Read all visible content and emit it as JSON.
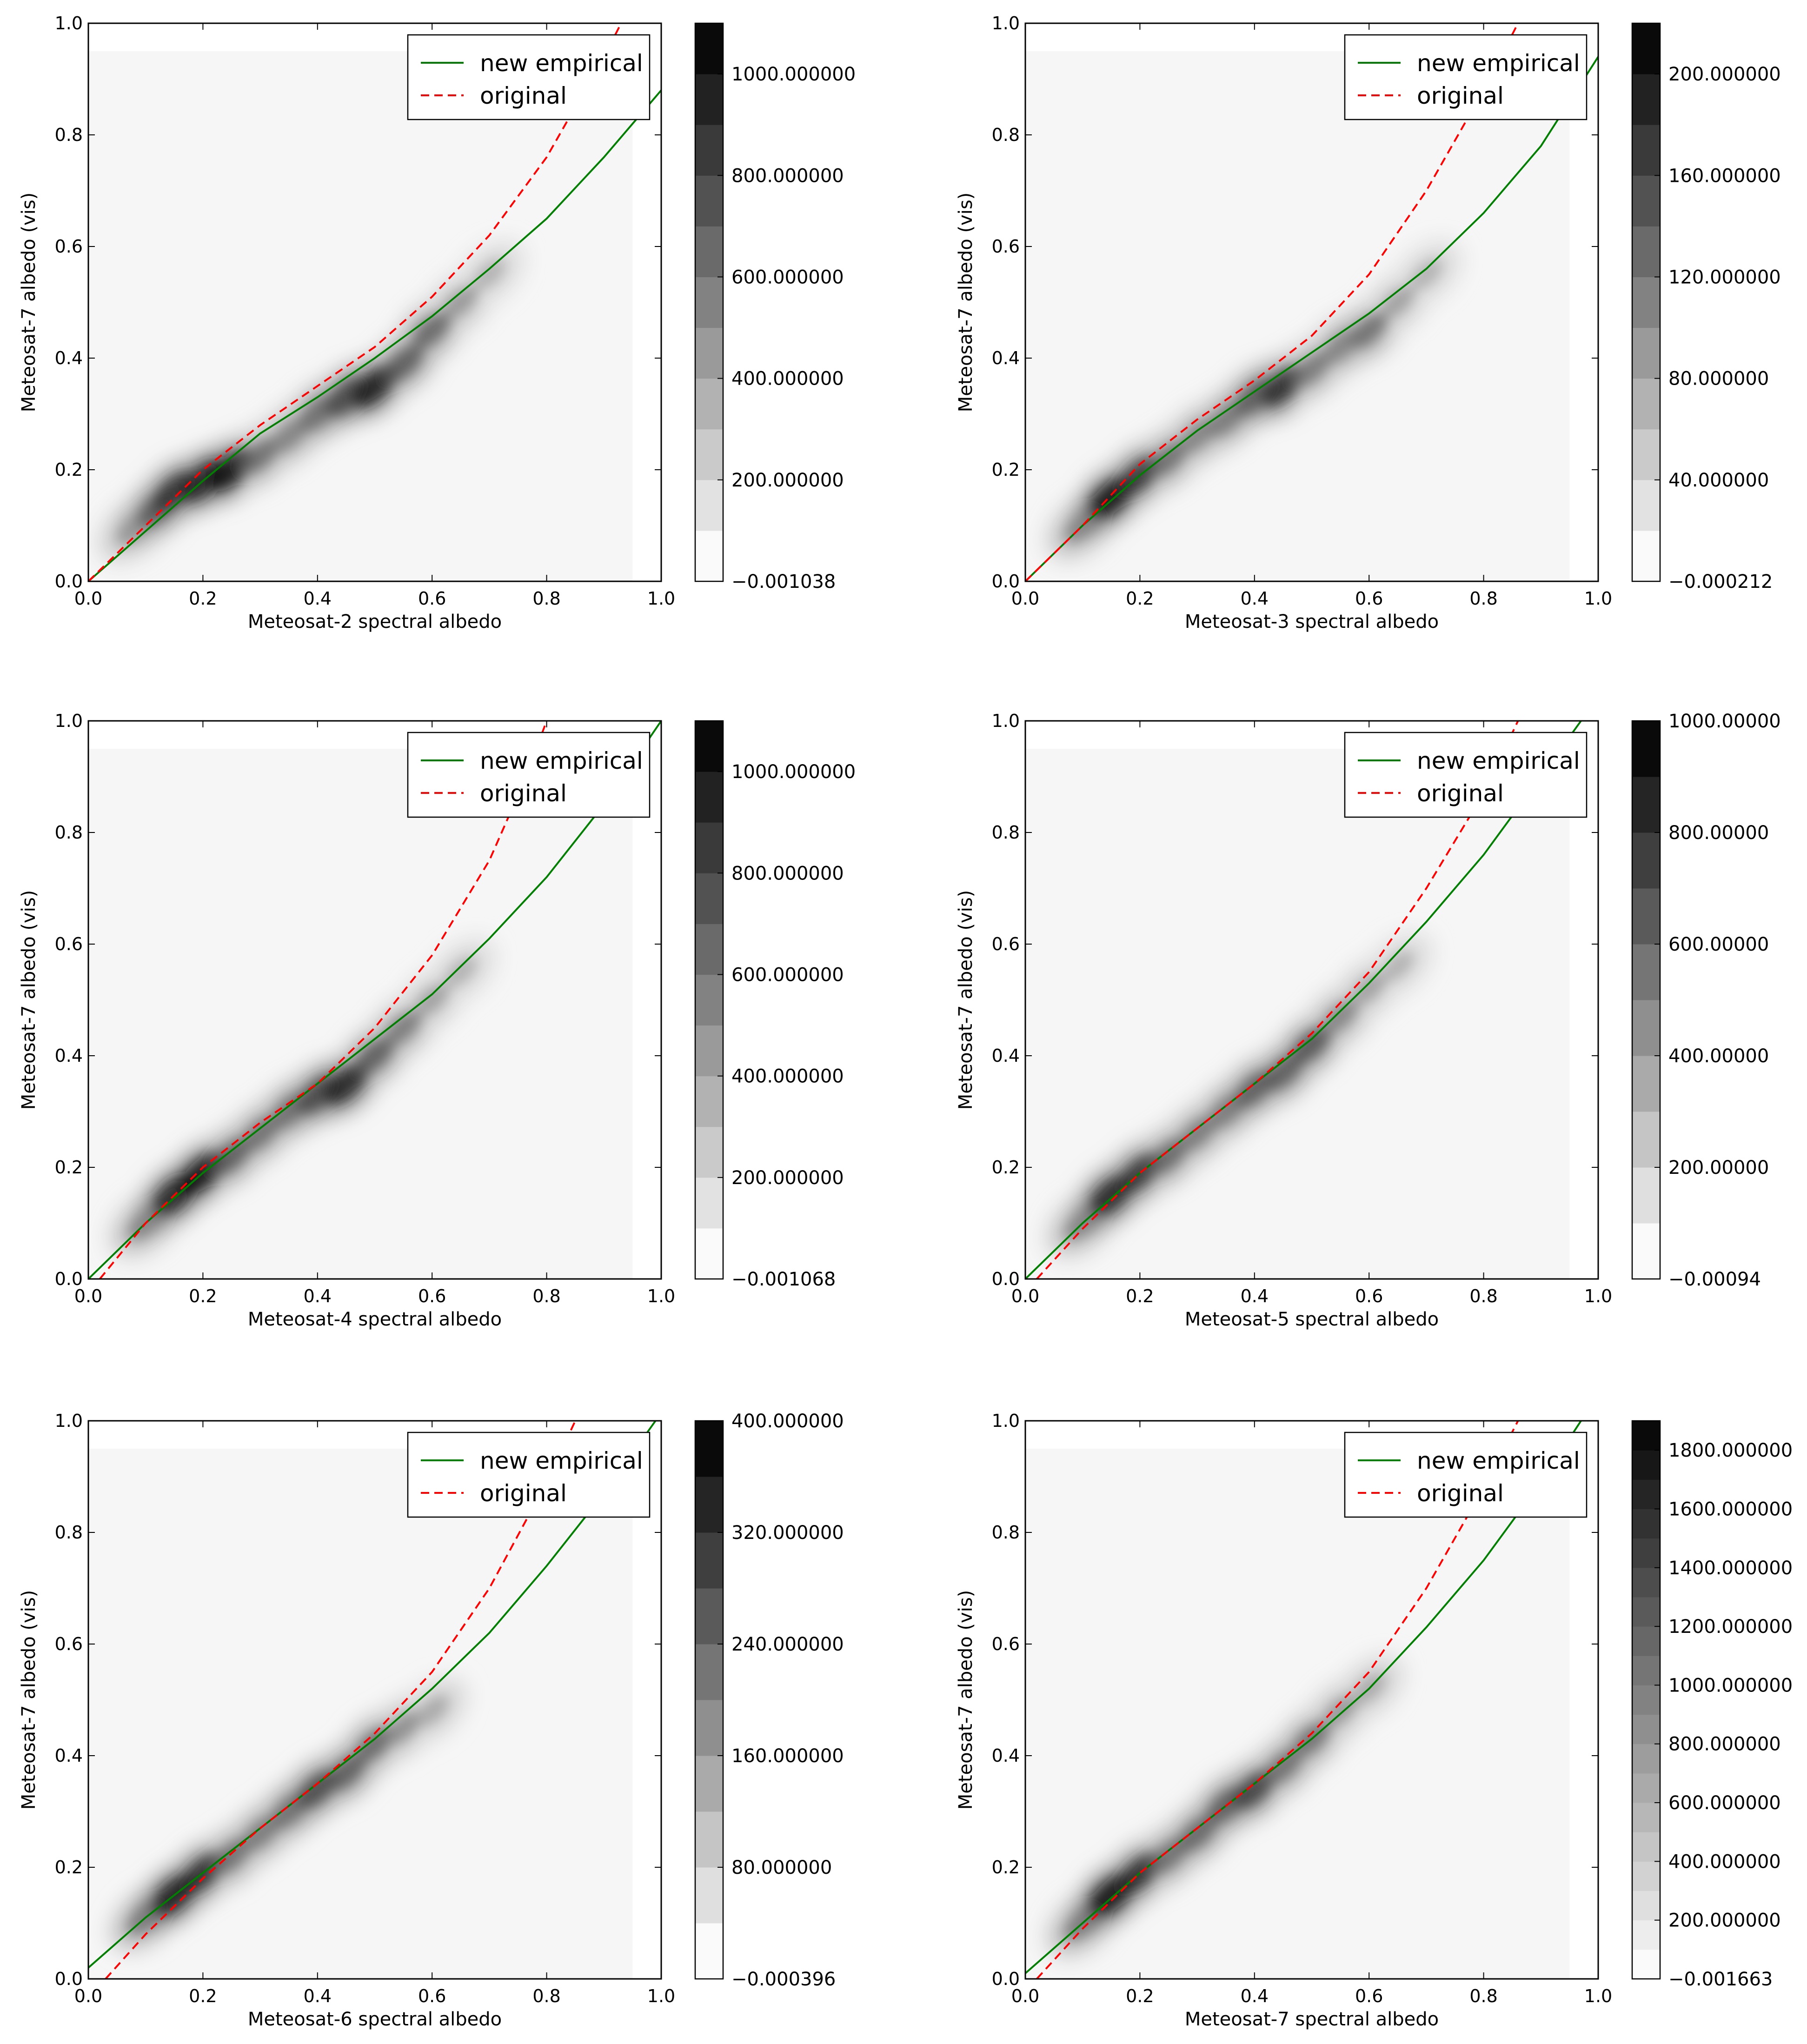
{
  "legend": {
    "new_label": "new empirical",
    "orig_label": "original"
  },
  "colors": {
    "new": "#007f00",
    "original": "#ff0000",
    "frame": "#000000"
  },
  "chart_data": [
    {
      "type": "contour",
      "xlabel": "Meteosat-2 spectral albedo",
      "ylabel": "Meteosat-7 albedo (vis)",
      "xlim": [
        0,
        1
      ],
      "ylim": [
        0,
        1
      ],
      "x_ticks": [
        "0.0",
        "0.2",
        "0.4",
        "0.6",
        "0.8",
        "1.0"
      ],
      "y_ticks": [
        "0.0",
        "0.2",
        "0.4",
        "0.6",
        "0.8",
        "1.0"
      ],
      "legend_position": "top-right",
      "colorbar": {
        "labels": [
          "−0.001038",
          "200.000000",
          "400.000000",
          "600.000000",
          "800.000000",
          "1000.000000"
        ],
        "vmin": 0,
        "vmax": 1100,
        "label_start": 0,
        "label_step": 200
      },
      "series": [
        {
          "name": "new empirical",
          "style": "solid",
          "x": [
            0,
            0.1,
            0.2,
            0.3,
            0.4,
            0.5,
            0.6,
            0.7,
            0.8,
            0.9,
            1.0
          ],
          "y": [
            0,
            0.09,
            0.18,
            0.265,
            0.33,
            0.4,
            0.475,
            0.56,
            0.65,
            0.76,
            0.88
          ]
        },
        {
          "name": "original",
          "style": "dashed",
          "x": [
            0,
            0.1,
            0.2,
            0.3,
            0.4,
            0.5,
            0.6,
            0.7,
            0.8,
            0.9,
            0.93
          ],
          "y": [
            0,
            0.1,
            0.2,
            0.28,
            0.35,
            0.42,
            0.51,
            0.62,
            0.76,
            0.94,
            1.0
          ]
        }
      ],
      "density": {
        "xy": [
          [
            0.08,
            0.095
          ],
          [
            0.12,
            0.13
          ],
          [
            0.15,
            0.16
          ],
          [
            0.2,
            0.18
          ],
          [
            0.25,
            0.2
          ],
          [
            0.3,
            0.225
          ],
          [
            0.35,
            0.26
          ],
          [
            0.4,
            0.3
          ],
          [
            0.45,
            0.33
          ],
          [
            0.5,
            0.35
          ],
          [
            0.55,
            0.39
          ],
          [
            0.6,
            0.45
          ],
          [
            0.65,
            0.5
          ],
          [
            0.7,
            0.55
          ]
        ],
        "w": [
          0.3,
          0.6,
          0.8,
          0.9,
          1.0,
          0.5,
          0.4,
          0.5,
          0.7,
          0.95,
          0.6,
          0.55,
          0.3,
          0.15
        ]
      }
    },
    {
      "type": "contour",
      "xlabel": "Meteosat-3 spectral albedo",
      "ylabel": "Meteosat-7 albedo (vis)",
      "xlim": [
        0,
        1
      ],
      "ylim": [
        0,
        1
      ],
      "x_ticks": [
        "0.0",
        "0.2",
        "0.4",
        "0.6",
        "0.8",
        "1.0"
      ],
      "y_ticks": [
        "0.0",
        "0.2",
        "0.4",
        "0.6",
        "0.8",
        "1.0"
      ],
      "legend_position": "top-right",
      "colorbar": {
        "labels": [
          "−0.000212",
          "40.000000",
          "80.000000",
          "120.000000",
          "160.000000",
          "200.000000"
        ],
        "vmin": 0,
        "vmax": 220,
        "label_start": 0,
        "label_step": 40
      },
      "series": [
        {
          "name": "new empirical",
          "style": "solid",
          "x": [
            0,
            0.1,
            0.2,
            0.3,
            0.4,
            0.5,
            0.6,
            0.7,
            0.8,
            0.9,
            1.0
          ],
          "y": [
            0,
            0.1,
            0.19,
            0.27,
            0.34,
            0.41,
            0.48,
            0.56,
            0.66,
            0.78,
            0.94
          ]
        },
        {
          "name": "original",
          "style": "dashed",
          "x": [
            0,
            0.1,
            0.2,
            0.3,
            0.4,
            0.5,
            0.6,
            0.7,
            0.8,
            0.86
          ],
          "y": [
            0,
            0.1,
            0.21,
            0.29,
            0.36,
            0.44,
            0.55,
            0.7,
            0.88,
            1.0
          ]
        }
      ],
      "density": {
        "xy": [
          [
            0.1,
            0.1
          ],
          [
            0.15,
            0.15
          ],
          [
            0.2,
            0.19
          ],
          [
            0.25,
            0.22
          ],
          [
            0.3,
            0.26
          ],
          [
            0.35,
            0.29
          ],
          [
            0.4,
            0.33
          ],
          [
            0.45,
            0.35
          ],
          [
            0.5,
            0.38
          ],
          [
            0.55,
            0.42
          ],
          [
            0.6,
            0.45
          ],
          [
            0.65,
            0.5
          ],
          [
            0.7,
            0.55
          ]
        ],
        "w": [
          0.4,
          1.0,
          0.8,
          0.5,
          0.4,
          0.45,
          0.6,
          0.85,
          0.45,
          0.4,
          0.5,
          0.25,
          0.15
        ]
      }
    },
    {
      "type": "contour",
      "xlabel": "Meteosat-4 spectral albedo",
      "ylabel": "Meteosat-7 albedo (vis)",
      "xlim": [
        0,
        1
      ],
      "ylim": [
        0,
        1
      ],
      "x_ticks": [
        "0.0",
        "0.2",
        "0.4",
        "0.6",
        "0.8",
        "1.0"
      ],
      "y_ticks": [
        "0.0",
        "0.2",
        "0.4",
        "0.6",
        "0.8",
        "1.0"
      ],
      "legend_position": "top-right",
      "colorbar": {
        "labels": [
          "−0.001068",
          "200.000000",
          "400.000000",
          "600.000000",
          "800.000000",
          "1000.000000"
        ],
        "vmin": 0,
        "vmax": 1100,
        "label_start": 0,
        "label_step": 200
      },
      "series": [
        {
          "name": "new empirical",
          "style": "solid",
          "x": [
            0,
            0.1,
            0.2,
            0.3,
            0.4,
            0.5,
            0.6,
            0.7,
            0.8,
            0.9,
            1.0
          ],
          "y": [
            0,
            0.1,
            0.19,
            0.27,
            0.35,
            0.43,
            0.51,
            0.61,
            0.72,
            0.85,
            1.0
          ]
        },
        {
          "name": "original",
          "style": "dashed",
          "x": [
            0.02,
            0.1,
            0.2,
            0.3,
            0.4,
            0.5,
            0.6,
            0.7,
            0.76,
            0.8
          ],
          "y": [
            0,
            0.1,
            0.2,
            0.28,
            0.35,
            0.45,
            0.58,
            0.75,
            0.89,
            1.0
          ]
        }
      ],
      "density": {
        "xy": [
          [
            0.1,
            0.1
          ],
          [
            0.15,
            0.15
          ],
          [
            0.2,
            0.19
          ],
          [
            0.25,
            0.22
          ],
          [
            0.3,
            0.26
          ],
          [
            0.35,
            0.3
          ],
          [
            0.4,
            0.33
          ],
          [
            0.45,
            0.35
          ],
          [
            0.5,
            0.4
          ],
          [
            0.55,
            0.45
          ],
          [
            0.6,
            0.5
          ],
          [
            0.65,
            0.55
          ]
        ],
        "w": [
          0.4,
          0.9,
          1.0,
          0.6,
          0.5,
          0.5,
          0.7,
          0.9,
          0.6,
          0.45,
          0.25,
          0.15
        ]
      }
    },
    {
      "type": "contour",
      "xlabel": "Meteosat-5 spectral albedo",
      "ylabel": "Meteosat-7 albedo (vis)",
      "xlim": [
        0,
        1
      ],
      "ylim": [
        0,
        1
      ],
      "x_ticks": [
        "0.0",
        "0.2",
        "0.4",
        "0.6",
        "0.8",
        "1.0"
      ],
      "y_ticks": [
        "0.0",
        "0.2",
        "0.4",
        "0.6",
        "0.8",
        "1.0"
      ],
      "legend_position": "top-right",
      "colorbar": {
        "labels": [
          "−0.00094",
          "200.00000",
          "400.00000",
          "600.00000",
          "800.00000",
          "1000.00000"
        ],
        "vmin": 0,
        "vmax": 1000,
        "label_start": 0,
        "label_step": 200
      },
      "series": [
        {
          "name": "new empirical",
          "style": "solid",
          "x": [
            0,
            0.1,
            0.2,
            0.3,
            0.4,
            0.5,
            0.6,
            0.7,
            0.8,
            0.9,
            0.97
          ],
          "y": [
            0,
            0.1,
            0.19,
            0.27,
            0.35,
            0.43,
            0.53,
            0.64,
            0.76,
            0.9,
            1.0
          ]
        },
        {
          "name": "original",
          "style": "dashed",
          "x": [
            0.02,
            0.1,
            0.2,
            0.3,
            0.4,
            0.5,
            0.6,
            0.7,
            0.8,
            0.86
          ],
          "y": [
            0,
            0.09,
            0.19,
            0.27,
            0.35,
            0.44,
            0.55,
            0.7,
            0.87,
            1.0
          ]
        }
      ],
      "density": {
        "xy": [
          [
            0.1,
            0.1
          ],
          [
            0.15,
            0.15
          ],
          [
            0.2,
            0.19
          ],
          [
            0.25,
            0.22
          ],
          [
            0.3,
            0.26
          ],
          [
            0.35,
            0.3
          ],
          [
            0.4,
            0.34
          ],
          [
            0.45,
            0.37
          ],
          [
            0.5,
            0.42
          ],
          [
            0.55,
            0.47
          ],
          [
            0.6,
            0.52
          ],
          [
            0.65,
            0.56
          ]
        ],
        "w": [
          0.4,
          0.9,
          0.8,
          0.55,
          0.45,
          0.45,
          0.6,
          0.6,
          0.65,
          0.4,
          0.25,
          0.15
        ]
      }
    },
    {
      "type": "contour",
      "xlabel": "Meteosat-6 spectral albedo",
      "ylabel": "Meteosat-7 albedo (vis)",
      "xlim": [
        0,
        1
      ],
      "ylim": [
        0,
        1
      ],
      "x_ticks": [
        "0.0",
        "0.2",
        "0.4",
        "0.6",
        "0.8",
        "1.0"
      ],
      "y_ticks": [
        "0.0",
        "0.2",
        "0.4",
        "0.6",
        "0.8",
        "1.0"
      ],
      "legend_position": "top-right",
      "colorbar": {
        "labels": [
          "−0.000396",
          "80.000000",
          "160.000000",
          "240.000000",
          "320.000000",
          "400.000000"
        ],
        "vmin": 0,
        "vmax": 400,
        "label_start": 0,
        "label_step": 80
      },
      "series": [
        {
          "name": "new empirical",
          "style": "solid",
          "x": [
            0,
            0.1,
            0.2,
            0.3,
            0.4,
            0.5,
            0.6,
            0.7,
            0.8,
            0.9,
            0.99
          ],
          "y": [
            0.02,
            0.11,
            0.19,
            0.27,
            0.35,
            0.43,
            0.52,
            0.62,
            0.74,
            0.87,
            1.0
          ]
        },
        {
          "name": "original",
          "style": "dashed",
          "x": [
            0.03,
            0.1,
            0.2,
            0.3,
            0.4,
            0.5,
            0.6,
            0.7,
            0.8,
            0.85
          ],
          "y": [
            0,
            0.08,
            0.18,
            0.27,
            0.35,
            0.44,
            0.55,
            0.7,
            0.89,
            1.0
          ]
        }
      ],
      "density": {
        "xy": [
          [
            0.1,
            0.11
          ],
          [
            0.15,
            0.15
          ],
          [
            0.2,
            0.19
          ],
          [
            0.25,
            0.22
          ],
          [
            0.3,
            0.26
          ],
          [
            0.35,
            0.3
          ],
          [
            0.4,
            0.34
          ],
          [
            0.45,
            0.37
          ],
          [
            0.5,
            0.42
          ],
          [
            0.55,
            0.45
          ],
          [
            0.6,
            0.48
          ]
        ],
        "w": [
          0.45,
          0.95,
          0.85,
          0.5,
          0.45,
          0.5,
          0.7,
          0.6,
          0.55,
          0.35,
          0.2
        ]
      }
    },
    {
      "type": "contour",
      "xlabel": "Meteosat-7 spectral albedo",
      "ylabel": "Meteosat-7 albedo (vis)",
      "xlim": [
        0,
        1
      ],
      "ylim": [
        0,
        1
      ],
      "x_ticks": [
        "0.0",
        "0.2",
        "0.4",
        "0.6",
        "0.8",
        "1.0"
      ],
      "y_ticks": [
        "0.0",
        "0.2",
        "0.4",
        "0.6",
        "0.8",
        "1.0"
      ],
      "legend_position": "top-right",
      "colorbar": {
        "labels": [
          "−0.001663",
          "200.000000",
          "400.000000",
          "600.000000",
          "800.000000",
          "1000.000000",
          "1200.000000",
          "1400.000000",
          "1600.000000",
          "1800.000000"
        ],
        "vmin": 0,
        "vmax": 1900,
        "label_start": 0,
        "label_step": 200
      },
      "series": [
        {
          "name": "new empirical",
          "style": "solid",
          "x": [
            0,
            0.1,
            0.2,
            0.3,
            0.4,
            0.5,
            0.6,
            0.7,
            0.8,
            0.9,
            0.97
          ],
          "y": [
            0.01,
            0.1,
            0.19,
            0.27,
            0.35,
            0.43,
            0.52,
            0.63,
            0.75,
            0.89,
            1.0
          ]
        },
        {
          "name": "original",
          "style": "dashed",
          "x": [
            0.02,
            0.1,
            0.2,
            0.3,
            0.4,
            0.5,
            0.6,
            0.7,
            0.8,
            0.86
          ],
          "y": [
            0,
            0.09,
            0.19,
            0.27,
            0.35,
            0.44,
            0.55,
            0.7,
            0.88,
            1.0
          ]
        }
      ],
      "density": {
        "xy": [
          [
            0.1,
            0.1
          ],
          [
            0.15,
            0.15
          ],
          [
            0.2,
            0.19
          ],
          [
            0.25,
            0.22
          ],
          [
            0.3,
            0.26
          ],
          [
            0.35,
            0.31
          ],
          [
            0.4,
            0.34
          ],
          [
            0.45,
            0.38
          ],
          [
            0.5,
            0.43
          ],
          [
            0.55,
            0.48
          ],
          [
            0.6,
            0.52
          ]
        ],
        "w": [
          0.45,
          1.0,
          0.85,
          0.5,
          0.55,
          0.6,
          0.75,
          0.5,
          0.5,
          0.3,
          0.2
        ]
      }
    }
  ]
}
